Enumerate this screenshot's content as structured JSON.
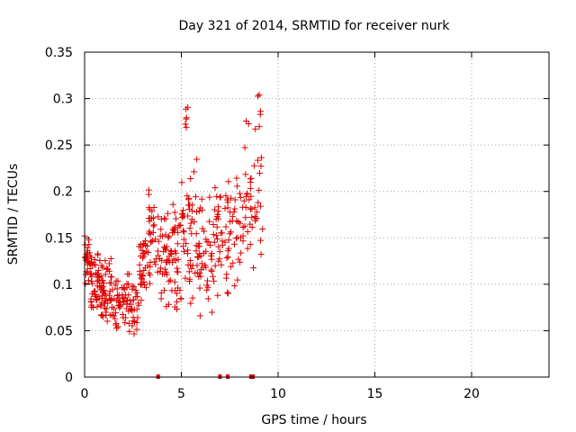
{
  "chart_data": {
    "type": "scatter",
    "title": "Day 321 of 2014, SRMTID for receiver nurk",
    "xlabel": "GPS time / hours",
    "ylabel": "SRMTID / TECUs",
    "xlim": [
      0,
      24
    ],
    "ylim": [
      0,
      0.35
    ],
    "x_ticks": [
      0,
      5,
      10,
      15,
      20
    ],
    "x_tick_labels": [
      "0",
      "5",
      "10",
      "15",
      "20"
    ],
    "y_ticks": [
      0,
      0.05,
      0.1,
      0.15,
      0.2,
      0.25,
      0.3,
      0.35
    ],
    "y_tick_labels": [
      "0",
      "0.05",
      "0.1",
      "0.15",
      "0.2",
      "0.25",
      "0.3",
      "0.35"
    ],
    "grid": true,
    "marker": "+",
    "series_color": "#e00000",
    "x_range_of_data": [
      0,
      9.2
    ],
    "zero_value_markers_x": [
      3.8,
      7.0,
      7.4,
      8.6,
      8.7
    ],
    "clusters": [
      {
        "x_range": [
          0.0,
          0.3
        ],
        "y_range": [
          0.08,
          0.16
        ],
        "n": 30
      },
      {
        "x_range": [
          0.3,
          0.8
        ],
        "y_range": [
          0.06,
          0.14
        ],
        "n": 45
      },
      {
        "x_range": [
          0.8,
          1.5
        ],
        "y_range": [
          0.05,
          0.13
        ],
        "n": 55
      },
      {
        "x_range": [
          1.5,
          2.2
        ],
        "y_range": [
          0.04,
          0.11
        ],
        "n": 45
      },
      {
        "x_range": [
          2.2,
          2.8
        ],
        "y_range": [
          0.04,
          0.12
        ],
        "n": 35
      },
      {
        "x_range": [
          2.8,
          3.4
        ],
        "y_range": [
          0.08,
          0.16
        ],
        "n": 40
      },
      {
        "x_range": [
          3.3,
          3.6
        ],
        "y_range": [
          0.14,
          0.22
        ],
        "n": 20
      },
      {
        "x_range": [
          3.6,
          4.4
        ],
        "y_range": [
          0.07,
          0.19
        ],
        "n": 45
      },
      {
        "x_range": [
          4.4,
          5.0
        ],
        "y_range": [
          0.06,
          0.21
        ],
        "n": 40
      },
      {
        "x_range": [
          5.0,
          5.8
        ],
        "y_range": [
          0.07,
          0.25
        ],
        "n": 50
      },
      {
        "x_range": [
          5.2,
          5.4
        ],
        "y_range": [
          0.26,
          0.3
        ],
        "n": 6
      },
      {
        "x_range": [
          5.8,
          6.6
        ],
        "y_range": [
          0.05,
          0.2
        ],
        "n": 45
      },
      {
        "x_range": [
          6.6,
          7.4
        ],
        "y_range": [
          0.07,
          0.23
        ],
        "n": 40
      },
      {
        "x_range": [
          7.4,
          8.2
        ],
        "y_range": [
          0.08,
          0.24
        ],
        "n": 40
      },
      {
        "x_range": [
          8.2,
          9.2
        ],
        "y_range": [
          0.1,
          0.28
        ],
        "n": 45
      },
      {
        "x_range": [
          8.9,
          9.1
        ],
        "y_range": [
          0.26,
          0.31
        ],
        "n": 5
      }
    ]
  }
}
